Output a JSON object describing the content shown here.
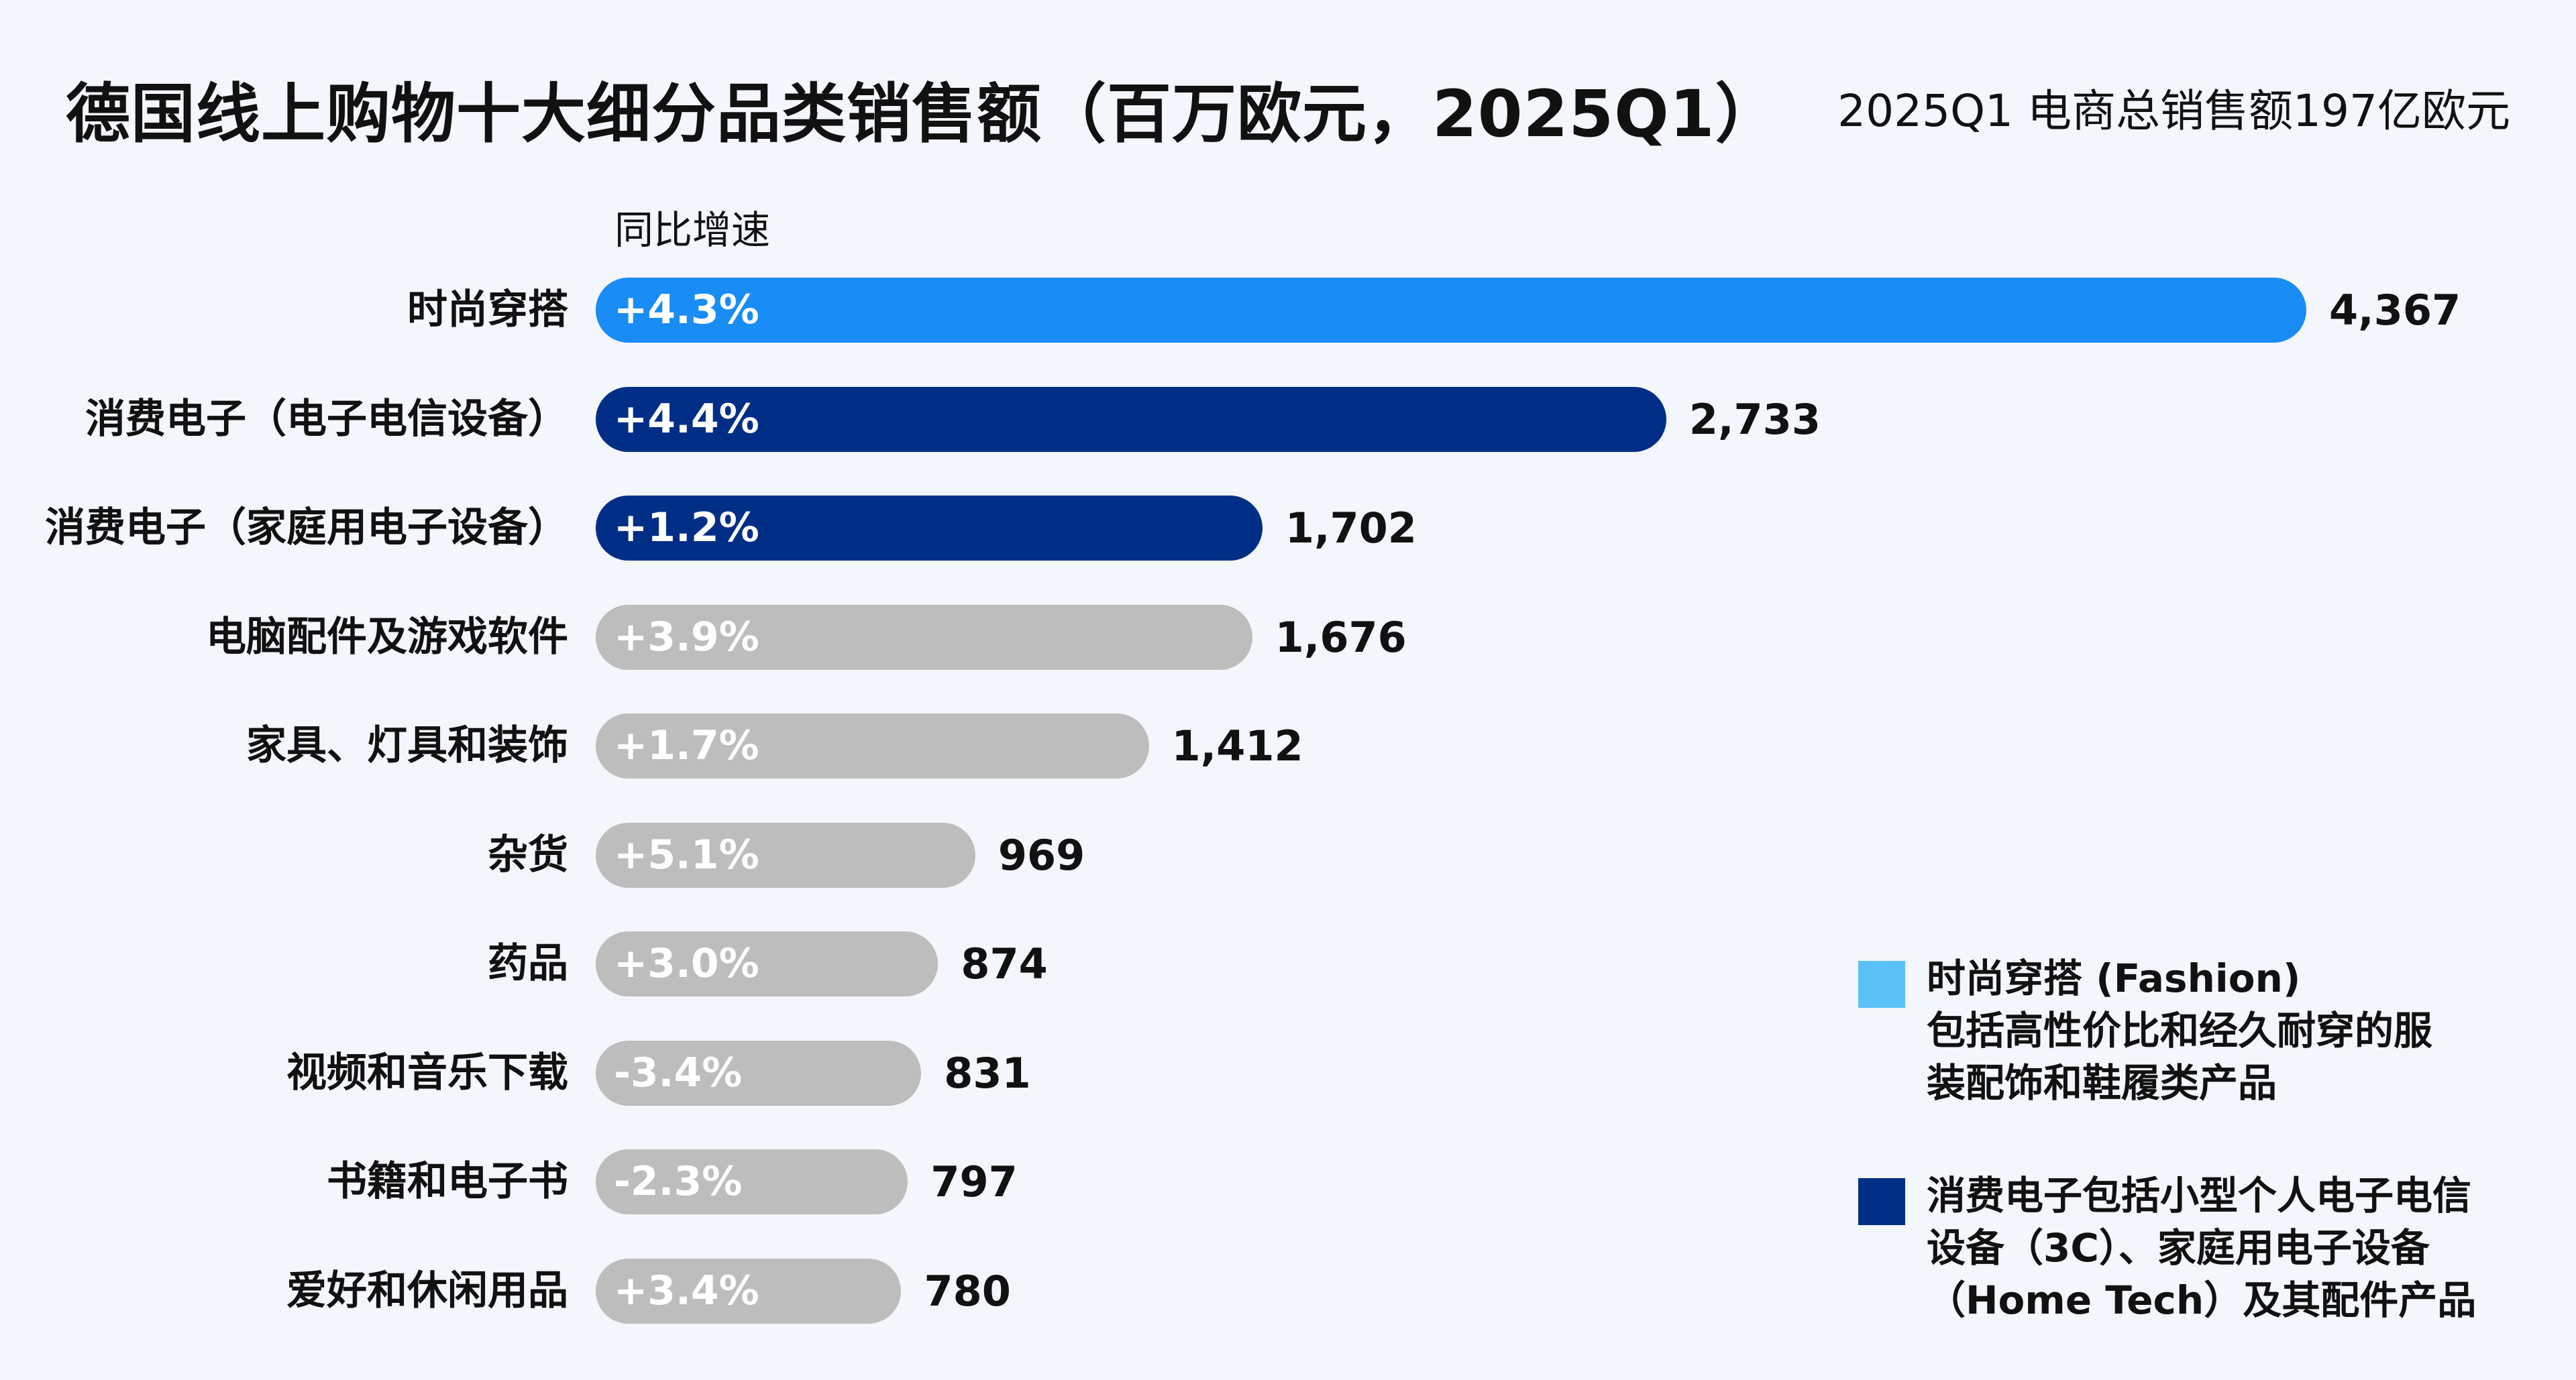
{
  "chart_data": {
    "type": "bar",
    "orientation": "horizontal",
    "title": "德国线上购物十大细分品类销售额（百万欧元，2025Q1）",
    "subtitle": "2025Q1 电商总销售额197亿欧元",
    "growth_header": "同比增速",
    "xlim": [
      0,
      4367
    ],
    "categories": [
      "时尚穿搭",
      "消费电子（电子电信设备）",
      "消费电子（家庭用电子设备）",
      "电脑配件及游戏软件",
      "家具、灯具和装饰",
      "杂货",
      "药品",
      "视频和音乐下载",
      "书籍和电子书",
      "爱好和休闲用品"
    ],
    "values": [
      4367,
      2733,
      1702,
      1676,
      1412,
      969,
      874,
      831,
      797,
      780
    ],
    "value_labels": [
      "4,367",
      "2,733",
      "1,702",
      "1,676",
      "1,412",
      "969",
      "874",
      "831",
      "797",
      "780"
    ],
    "growth": [
      "+4.3%",
      "+4.4%",
      "+1.2%",
      "+3.9%",
      "+1.7%",
      "+5.1%",
      "+3.0%",
      "-3.4%",
      "-2.3%",
      "+3.4%"
    ],
    "bar_colors": [
      "#1a8cf5",
      "#002e87",
      "#002e87",
      "#bdbdbd",
      "#bdbdbd",
      "#bdbdbd",
      "#bdbdbd",
      "#bdbdbd",
      "#bdbdbd",
      "#bdbdbd"
    ]
  },
  "legend": [
    {
      "color": "#5bc2f7",
      "lines": [
        "时尚穿搭 (Fashion)",
        "包括高性价比和经久耐穿的服",
        "装配饰和鞋履类产品"
      ]
    },
    {
      "color": "#002e87",
      "lines": [
        "消费电子包括小型个人电子电信",
        "设备（3C）、家庭用电子设备",
        "（Home Tech）及其配件产品"
      ]
    }
  ]
}
